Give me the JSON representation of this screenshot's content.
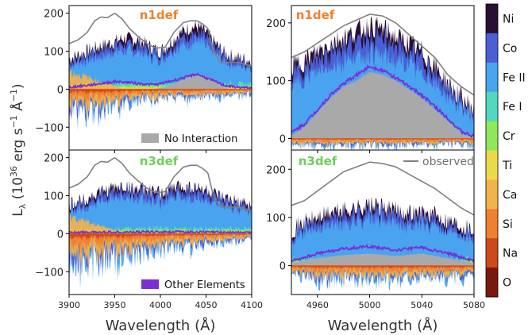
{
  "figure": {
    "ylabel": "L",
    "ylabel_sub": "λ",
    "ylabel_rest": " (10",
    "ylabel_sup": "36",
    "ylabel_unit": " erg s",
    "ylabel_sup2": "−1",
    "ylabel_unit2": " Å",
    "ylabel_sup3": "−1",
    "ylabel_close": ")",
    "xlabel_left": "Wavelength (Å)",
    "xlabel_right": "Wavelength (Å)"
  },
  "colors": {
    "Ni": "#2a0f35",
    "Co": "#4a5fd6",
    "Fe II": "#4aa3ee",
    "Fe I": "#52d7c0",
    "Cr": "#8ee85a",
    "Ti": "#ecd94a",
    "Ca": "#f2b24a",
    "Si": "#ee8030",
    "Na": "#cc4a1c",
    "O": "#7a1810",
    "other": "#7a2fd6",
    "no_interaction": "#a9a9a9",
    "observed": "#808080"
  },
  "colorbar": {
    "labels": [
      "Ni",
      "Co",
      "Fe II",
      "Fe I",
      "Cr",
      "Ti",
      "Ca",
      "Si",
      "Na",
      "O"
    ]
  },
  "legend_items": {
    "no_interaction": "No Interaction",
    "other_elements": "Other Elements",
    "observed": "observed"
  },
  "chart_data": [
    {
      "type": "area",
      "panel": "top-left",
      "label": "n1def",
      "label_color": "#f07f2a",
      "xlim": [
        3900,
        4100
      ],
      "ylim": [
        -160,
        220
      ],
      "xticks": [
        3900,
        3950,
        4000,
        4050,
        4100
      ],
      "yticks": [
        -100,
        0,
        100,
        200
      ],
      "observed": {
        "x": [
          3900,
          3910,
          3920,
          3928,
          3935,
          3942,
          3950,
          3958,
          3966,
          3975,
          3985,
          3995,
          4005,
          4015,
          4025,
          4033,
          4040,
          4046,
          4052,
          4058,
          4066,
          4075,
          4085,
          4093,
          4100
        ],
        "y": [
          120,
          130,
          150,
          180,
          190,
          188,
          200,
          185,
          160,
          140,
          120,
          108,
          110,
          150,
          175,
          180,
          180,
          172,
          160,
          100,
          70,
          70,
          70,
          65,
          60
        ]
      },
      "envelope": {
        "x": [
          3900,
          3910,
          3920,
          3930,
          3940,
          3950,
          3960,
          3970,
          3980,
          3990,
          4000,
          4010,
          4020,
          4030,
          4040,
          4050,
          4060,
          4070,
          4080,
          4090,
          4100
        ],
        "y": [
          80,
          90,
          100,
          110,
          118,
          125,
          135,
          130,
          125,
          110,
          100,
          120,
          145,
          160,
          165,
          150,
          120,
          95,
          85,
          80,
          75
        ]
      },
      "no_interaction": {
        "x": [
          3900,
          3960,
          3990,
          4005,
          4020,
          4035,
          4045,
          4055,
          4065,
          4075,
          4100
        ],
        "y": [
          0,
          0,
          0,
          5,
          20,
          35,
          38,
          30,
          10,
          0,
          0
        ]
      },
      "other_elements": {
        "x": [
          3900,
          3920,
          3935,
          3950,
          3965,
          3980,
          3995,
          4010,
          4025,
          4040,
          4055,
          4070,
          4085,
          4100
        ],
        "y": [
          5,
          10,
          15,
          20,
          18,
          14,
          12,
          20,
          30,
          40,
          25,
          10,
          5,
          3
        ]
      },
      "negative_floor": {
        "x": [
          3900,
          3920,
          3940,
          3960,
          3980,
          4000,
          4020,
          4040,
          4060,
          4080,
          4100
        ],
        "y": [
          -100,
          -90,
          -80,
          -60,
          -50,
          -40,
          -40,
          -35,
          -30,
          -25,
          -20
        ]
      }
    },
    {
      "type": "area",
      "panel": "top-right",
      "label": "n1def",
      "label_color": "#f07f2a",
      "xlim": [
        4940,
        5080
      ],
      "ylim": [
        -20,
        230
      ],
      "xticks": [
        4960,
        5000,
        5040,
        5080
      ],
      "yticks": [
        0,
        100,
        200
      ],
      "observed": {
        "x": [
          4940,
          4950,
          4960,
          4970,
          4980,
          4990,
          5000,
          5010,
          5020,
          5030,
          5040,
          5050,
          5060,
          5070,
          5080
        ],
        "y": [
          140,
          150,
          165,
          180,
          195,
          205,
          215,
          212,
          200,
          180,
          160,
          140,
          110,
          90,
          75
        ]
      },
      "envelope": {
        "x": [
          4940,
          4950,
          4960,
          4970,
          4980,
          4990,
          5000,
          5010,
          5020,
          5030,
          5040,
          5050,
          5060,
          5070,
          5080
        ],
        "y": [
          125,
          135,
          150,
          165,
          175,
          185,
          195,
          190,
          175,
          165,
          150,
          125,
          95,
          70,
          50
        ]
      },
      "no_interaction": {
        "x": [
          4940,
          4950,
          4960,
          4970,
          4980,
          4990,
          5000,
          5010,
          5020,
          5030,
          5040,
          5050,
          5060,
          5070,
          5080
        ],
        "y": [
          5,
          20,
          45,
          70,
          90,
          100,
          115,
          110,
          100,
          85,
          70,
          50,
          30,
          10,
          0
        ]
      },
      "other_elements": {
        "x": [
          4940,
          4950,
          4960,
          4970,
          4980,
          4990,
          5000,
          5010,
          5020,
          5030,
          5040,
          5050,
          5060,
          5070,
          5080
        ],
        "y": [
          10,
          25,
          50,
          75,
          95,
          110,
          125,
          118,
          105,
          90,
          75,
          55,
          35,
          12,
          3
        ]
      },
      "negative_floor": {
        "x": [
          4940,
          5080
        ],
        "y": [
          -18,
          -18
        ]
      }
    },
    {
      "type": "area",
      "panel": "bottom-left",
      "label": "n3def",
      "label_color": "#6fcf5a",
      "xlim": [
        3900,
        4100
      ],
      "ylim": [
        -160,
        220
      ],
      "xticks": [
        3900,
        3950,
        4000,
        4050,
        4100
      ],
      "yticks": [
        -100,
        0,
        100,
        200
      ],
      "observed": {
        "x": [
          3900,
          3910,
          3920,
          3928,
          3935,
          3942,
          3950,
          3958,
          3966,
          3975,
          3985,
          3995,
          4005,
          4015,
          4025,
          4033,
          4040,
          4046,
          4052,
          4058,
          4066,
          4075,
          4085,
          4093,
          4100
        ],
        "y": [
          120,
          130,
          150,
          180,
          190,
          188,
          200,
          185,
          160,
          140,
          120,
          108,
          110,
          150,
          175,
          180,
          180,
          172,
          160,
          100,
          70,
          70,
          70,
          65,
          60
        ]
      },
      "envelope": {
        "x": [
          3900,
          3910,
          3920,
          3930,
          3940,
          3950,
          3960,
          3970,
          3980,
          3990,
          4000,
          4010,
          4020,
          4030,
          4040,
          4050,
          4060,
          4070,
          4080,
          4090,
          4100
        ],
        "y": [
          75,
          85,
          95,
          105,
          115,
          120,
          125,
          120,
          115,
          110,
          105,
          115,
          125,
          125,
          120,
          115,
          100,
          90,
          85,
          78,
          72
        ]
      },
      "no_interaction": {
        "x": [
          3900,
          4100
        ],
        "y": [
          0,
          0
        ]
      },
      "other_elements": {
        "x": [
          3900,
          3950,
          4000,
          4050,
          4100
        ],
        "y": [
          3,
          4,
          5,
          4,
          3
        ]
      },
      "negative_floor": {
        "x": [
          3900,
          3920,
          3940,
          3960,
          3980,
          4000,
          4020,
          4040,
          4060,
          4080,
          4100
        ],
        "y": [
          -110,
          -120,
          -100,
          -85,
          -70,
          -60,
          -55,
          -50,
          -40,
          -30,
          -25
        ]
      }
    },
    {
      "type": "area",
      "panel": "bottom-right",
      "label": "n3def",
      "label_color": "#6fcf5a",
      "xlim": [
        4940,
        5080
      ],
      "ylim": [
        -60,
        240
      ],
      "xticks": [
        4960,
        5000,
        5040,
        5080
      ],
      "yticks": [
        0,
        100,
        200
      ],
      "observed": {
        "x": [
          4940,
          4950,
          4960,
          4970,
          4980,
          4990,
          5000,
          5010,
          5020,
          5030,
          5040,
          5050,
          5060,
          5070,
          5080
        ],
        "y": [
          125,
          135,
          155,
          175,
          195,
          205,
          215,
          212,
          205,
          190,
          175,
          160,
          140,
          120,
          105
        ]
      },
      "envelope": {
        "x": [
          4940,
          4950,
          4960,
          4970,
          4980,
          4990,
          5000,
          5010,
          5020,
          5030,
          5040,
          5050,
          5060,
          5070,
          5080
        ],
        "y": [
          75,
          90,
          100,
          110,
          115,
          120,
          125,
          120,
          115,
          110,
          110,
          105,
          95,
          85,
          75
        ]
      },
      "no_interaction": {
        "x": [
          4940,
          4960,
          4980,
          5000,
          5020,
          5040,
          5060,
          5080
        ],
        "y": [
          5,
          15,
          22,
          25,
          20,
          25,
          15,
          5
        ]
      },
      "other_elements": {
        "x": [
          4940,
          4960,
          4980,
          5000,
          5020,
          5040,
          5060,
          5080
        ],
        "y": [
          10,
          25,
          35,
          40,
          32,
          38,
          25,
          10
        ]
      },
      "negative_floor": {
        "x": [
          4940,
          4960,
          4980,
          5000,
          5020,
          5040,
          5060,
          5080
        ],
        "y": [
          -35,
          -40,
          -45,
          -45,
          -40,
          -40,
          -35,
          -30
        ]
      }
    }
  ]
}
